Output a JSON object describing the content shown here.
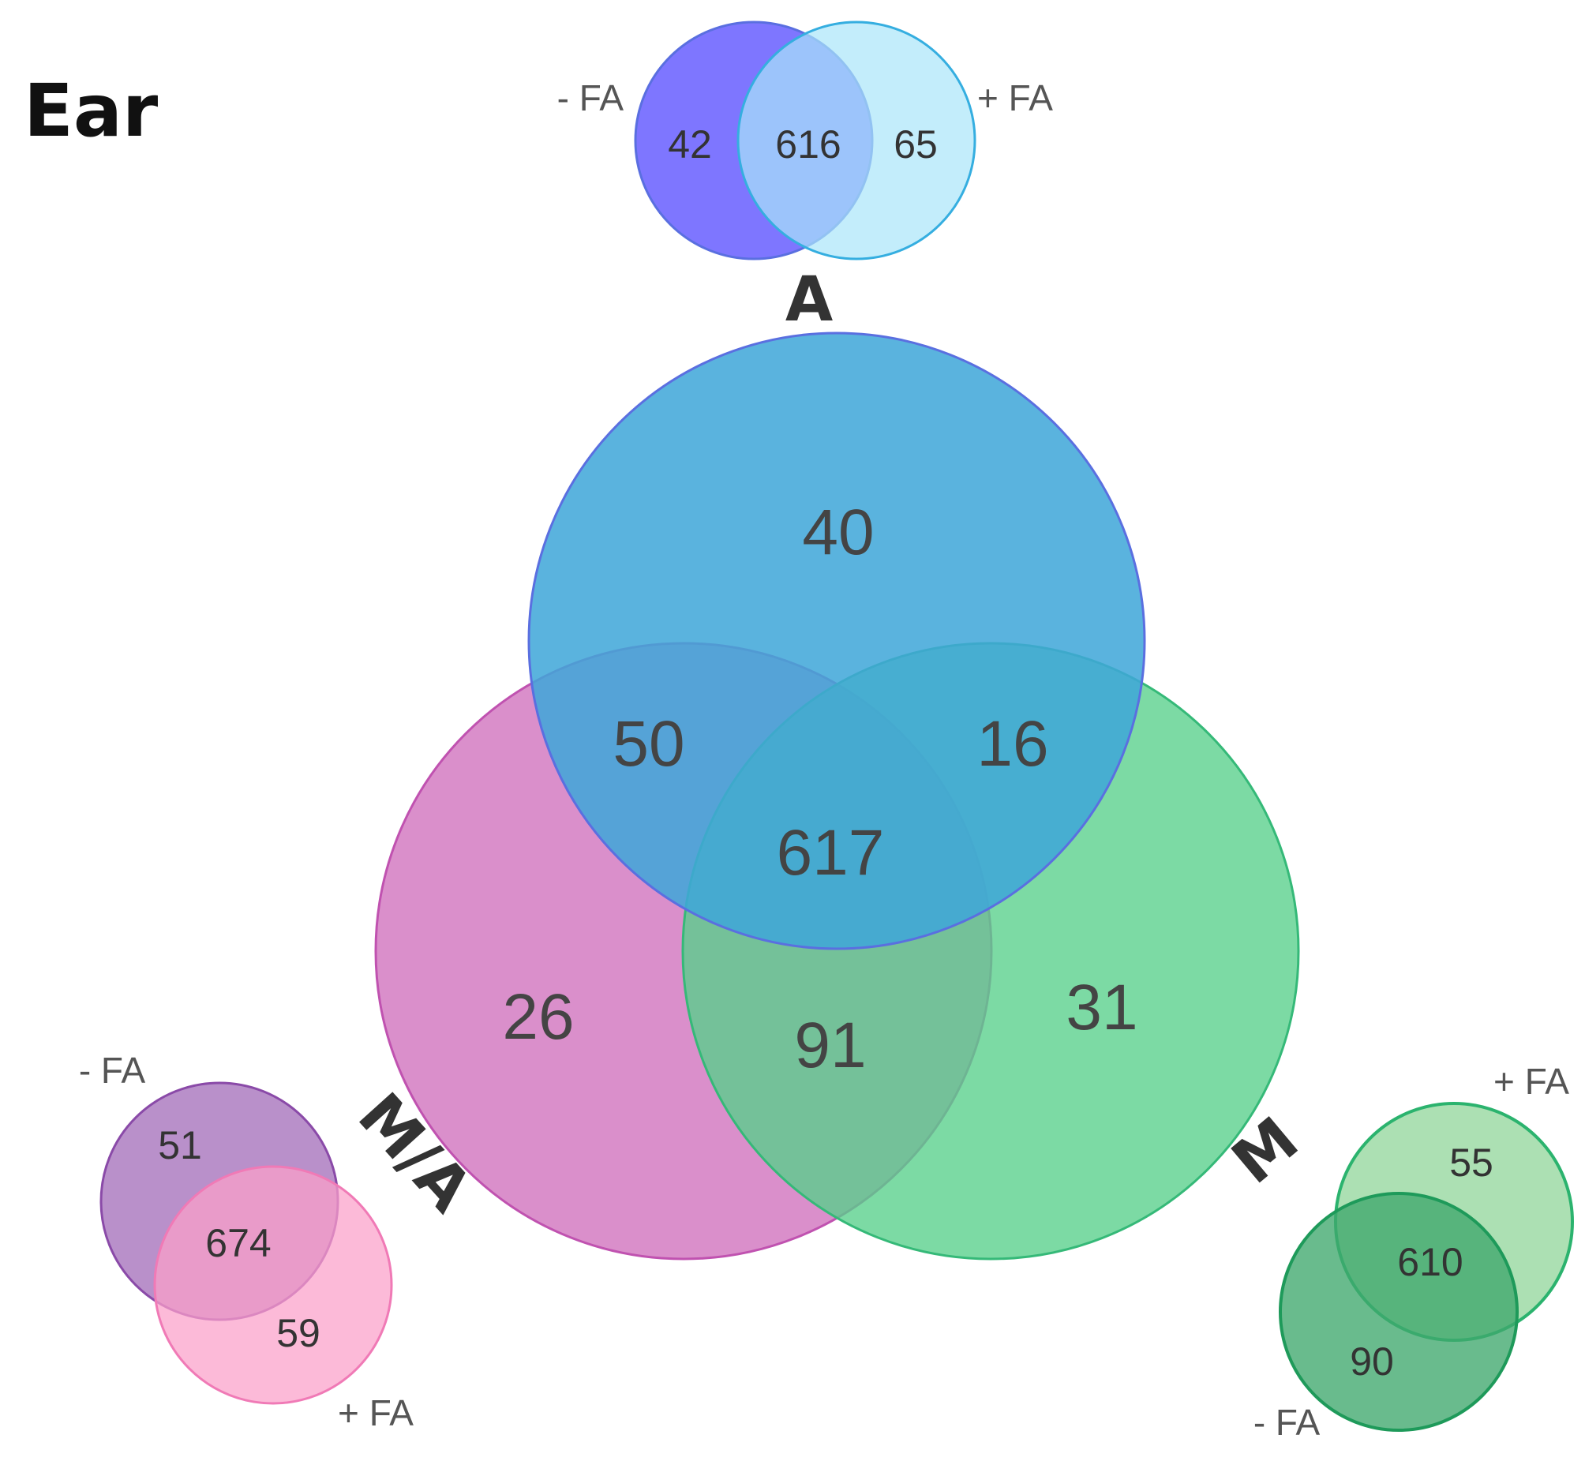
{
  "title": "Ear",
  "colors": {
    "a_fill": "#3fa7d9",
    "a_stroke": "#5a6fe0",
    "ma_fill": "#cf6fbd",
    "ma_stroke": "#c052b0",
    "m_fill": "#57d08a",
    "m_stroke": "#35b978",
    "a_minus_fill": "#6c63ff",
    "a_plus_fill": "#a9e6fa",
    "ma_minus_fill": "#a978be",
    "ma_plus_fill": "#fb9fc9",
    "m_plus_fill": "#9edba6",
    "m_minus_fill": "#3fa86d"
  },
  "main_venn": {
    "sets": {
      "a": "A",
      "ma": "M/A",
      "m": "M"
    },
    "regions": {
      "a_only": "40",
      "a_ma": "50",
      "a_m": "16",
      "all": "617",
      "ma_only": "26",
      "ma_m": "91",
      "m_only": "31"
    }
  },
  "sub_venn_a": {
    "minus_label": "- FA",
    "plus_label": "+ FA",
    "minus_only": "42",
    "both": "616",
    "plus_only": "65"
  },
  "sub_venn_ma": {
    "minus_label": "- FA",
    "plus_label": "+ FA",
    "minus_only": "51",
    "both": "674",
    "plus_only": "59"
  },
  "sub_venn_m": {
    "minus_label": "- FA",
    "plus_label": "+ FA",
    "minus_only": "90",
    "both": "610",
    "plus_only": "55"
  }
}
